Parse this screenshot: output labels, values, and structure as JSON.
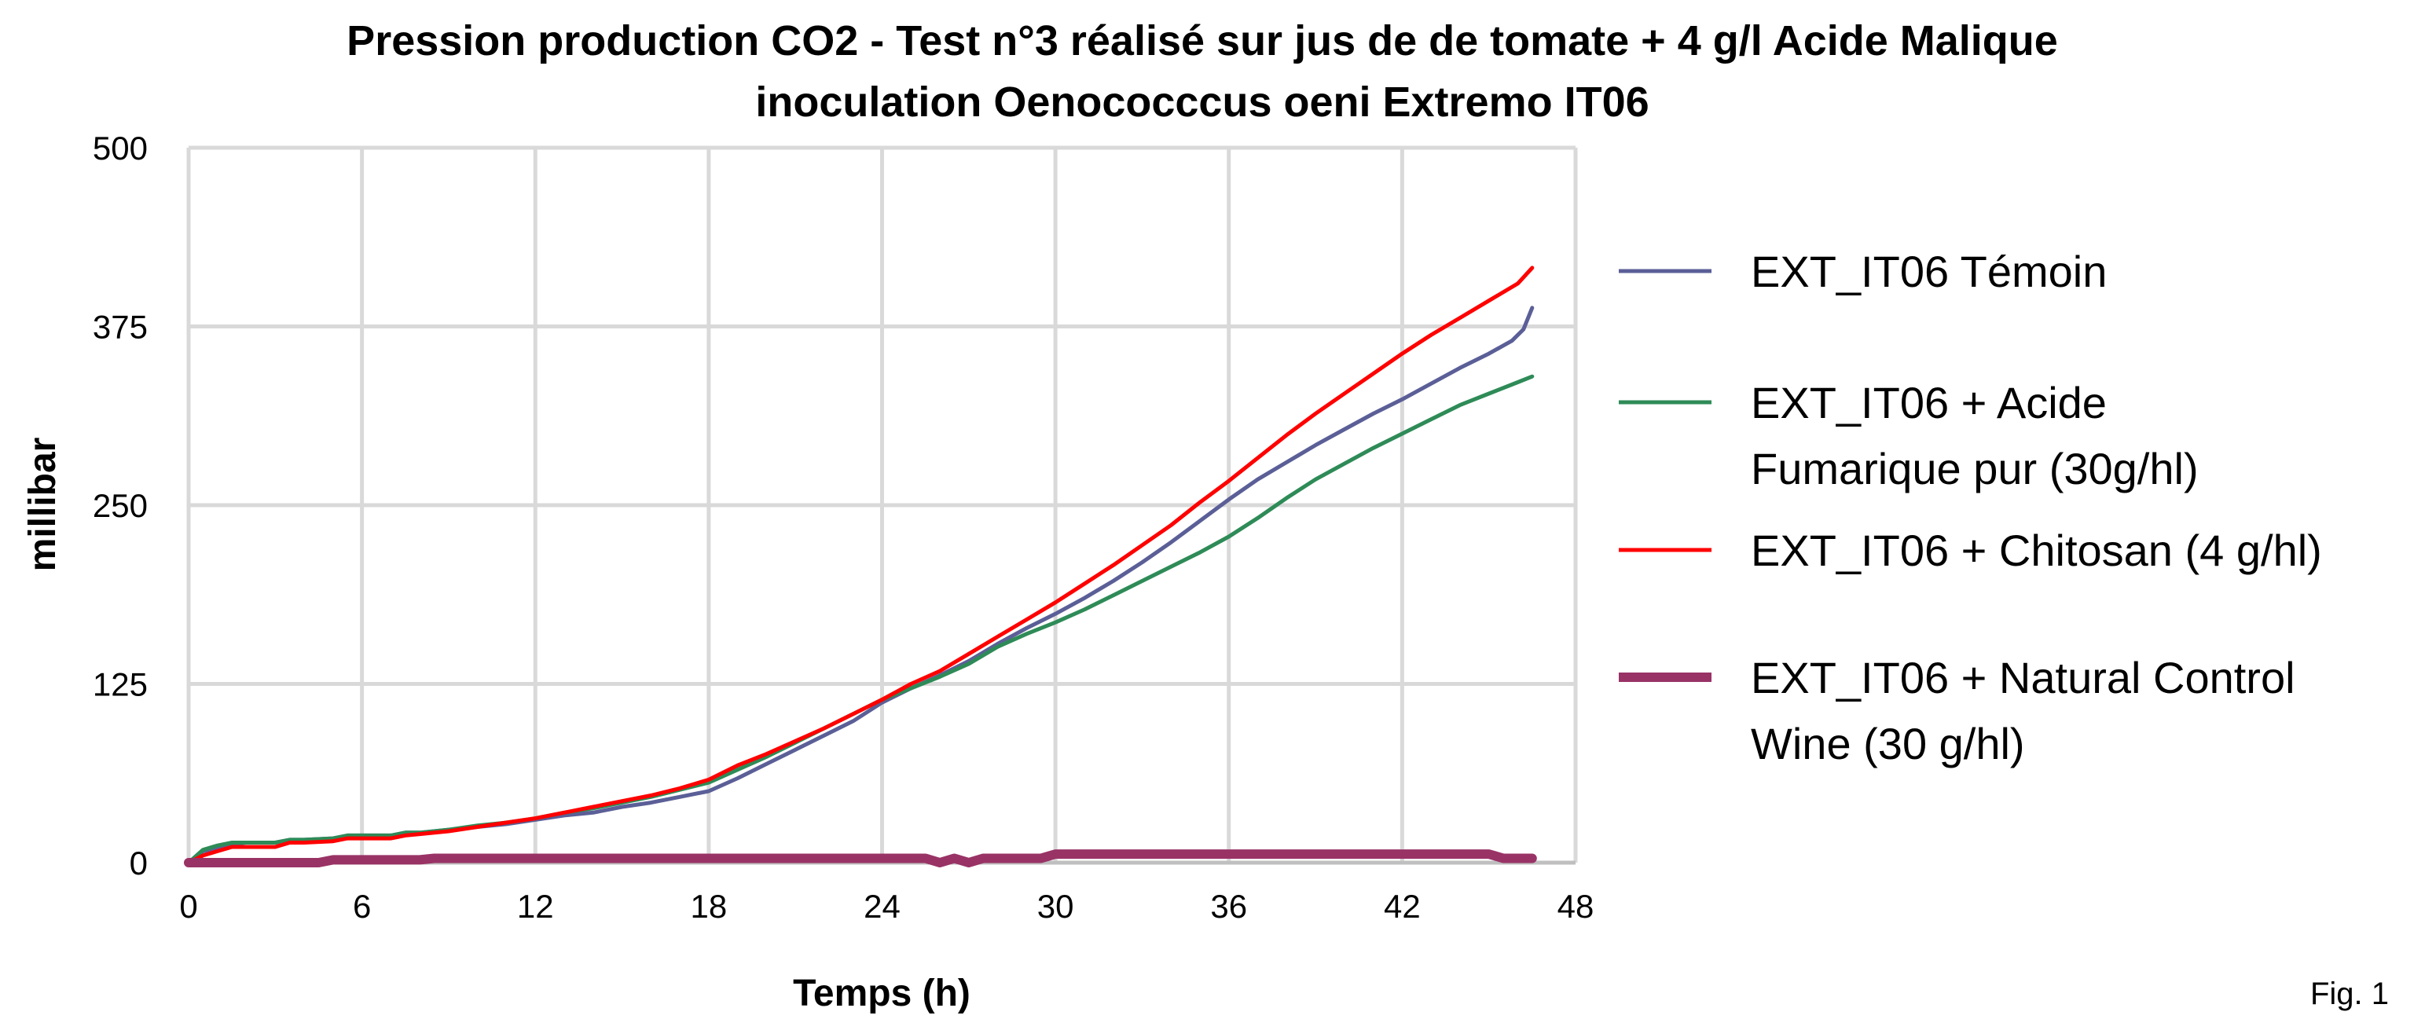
{
  "figure_label": "Fig. 1",
  "chart_data": {
    "type": "line",
    "title_line1": "Pression production CO2 - Test n°3 réalisé sur jus de de tomate + 4 g/l Acide Malique",
    "title_line2": "inoculation Oenococccus oeni Extremo IT06",
    "xlabel": "Temps (h)",
    "ylabel": "millibar",
    "xlim": [
      0,
      48
    ],
    "ylim": [
      0,
      500
    ],
    "xticks": [
      0,
      6,
      12,
      18,
      24,
      30,
      36,
      42,
      48
    ],
    "yticks": [
      0,
      125,
      250,
      375,
      500
    ],
    "grid": true,
    "legend_position": "right",
    "series": [
      {
        "name": "EXT_IT06 Témoin",
        "legend_lines": [
          "EXT_IT06 Témoin"
        ],
        "color": "#5b5f97",
        "width": "normal",
        "points": [
          [
            0,
            0
          ],
          [
            0.5,
            8
          ],
          [
            1,
            10
          ],
          [
            1.5,
            13
          ],
          [
            2,
            14
          ],
          [
            3,
            14
          ],
          [
            3.5,
            16
          ],
          [
            4,
            16
          ],
          [
            5,
            17
          ],
          [
            5.5,
            19
          ],
          [
            6,
            19
          ],
          [
            7,
            19
          ],
          [
            7.5,
            21
          ],
          [
            8,
            21
          ],
          [
            9,
            23
          ],
          [
            10,
            25
          ],
          [
            11,
            27
          ],
          [
            12,
            30
          ],
          [
            13,
            33
          ],
          [
            14,
            35
          ],
          [
            15,
            39
          ],
          [
            16,
            42
          ],
          [
            17,
            46
          ],
          [
            18,
            50
          ],
          [
            19,
            59
          ],
          [
            20,
            69
          ],
          [
            21,
            79
          ],
          [
            22,
            89
          ],
          [
            23,
            99
          ],
          [
            24,
            112
          ],
          [
            25,
            122
          ],
          [
            26,
            131
          ],
          [
            27,
            141
          ],
          [
            28,
            153
          ],
          [
            29,
            164
          ],
          [
            30,
            174
          ],
          [
            31,
            185
          ],
          [
            32,
            197
          ],
          [
            33,
            210
          ],
          [
            34,
            224
          ],
          [
            35,
            239
          ],
          [
            36,
            254
          ],
          [
            37,
            268
          ],
          [
            38,
            280
          ],
          [
            39,
            292
          ],
          [
            40,
            303
          ],
          [
            41,
            314
          ],
          [
            42,
            324
          ],
          [
            43,
            335
          ],
          [
            44,
            346
          ],
          [
            45,
            356
          ],
          [
            45.8,
            365
          ],
          [
            46.2,
            373
          ],
          [
            46.5,
            388
          ]
        ]
      },
      {
        "name": "EXT_IT06 + Acide Fumarique pur (30g/hl)",
        "legend_lines": [
          "EXT_IT06 + Acide",
          "Fumarique pur (30g/hl)"
        ],
        "color": "#2e8b57",
        "width": "normal",
        "points": [
          [
            0,
            0
          ],
          [
            0.5,
            9
          ],
          [
            1,
            12
          ],
          [
            1.5,
            14
          ],
          [
            2,
            14
          ],
          [
            3,
            14
          ],
          [
            3.5,
            16
          ],
          [
            4,
            16
          ],
          [
            5,
            17
          ],
          [
            5.5,
            19
          ],
          [
            6,
            19
          ],
          [
            7,
            19
          ],
          [
            7.5,
            21
          ],
          [
            8,
            21
          ],
          [
            9,
            23
          ],
          [
            10,
            26
          ],
          [
            11,
            28
          ],
          [
            12,
            31
          ],
          [
            13,
            35
          ],
          [
            14,
            38
          ],
          [
            15,
            42
          ],
          [
            16,
            46
          ],
          [
            17,
            51
          ],
          [
            18,
            56
          ],
          [
            19,
            65
          ],
          [
            20,
            74
          ],
          [
            21,
            84
          ],
          [
            22,
            94
          ],
          [
            23,
            104
          ],
          [
            24,
            114
          ],
          [
            25,
            122
          ],
          [
            26,
            130
          ],
          [
            27,
            139
          ],
          [
            28,
            151
          ],
          [
            29,
            160
          ],
          [
            30,
            168
          ],
          [
            31,
            177
          ],
          [
            32,
            187
          ],
          [
            33,
            197
          ],
          [
            34,
            207
          ],
          [
            35,
            217
          ],
          [
            36,
            228
          ],
          [
            37,
            241
          ],
          [
            38,
            255
          ],
          [
            39,
            268
          ],
          [
            40,
            279
          ],
          [
            41,
            290
          ],
          [
            42,
            300
          ],
          [
            43,
            310
          ],
          [
            44,
            320
          ],
          [
            45,
            328
          ],
          [
            46,
            336
          ],
          [
            46.5,
            340
          ]
        ]
      },
      {
        "name": "EXT_IT06 + Chitosan (4 g/hl)",
        "legend_lines": [
          "EXT_IT06 + Chitosan (4 g/hl)"
        ],
        "color": "#ff0000",
        "width": "normal",
        "points": [
          [
            0,
            0
          ],
          [
            0.5,
            5
          ],
          [
            1,
            8
          ],
          [
            1.5,
            11
          ],
          [
            2,
            11
          ],
          [
            3,
            11
          ],
          [
            3.5,
            14
          ],
          [
            4,
            14
          ],
          [
            5,
            15
          ],
          [
            5.5,
            17
          ],
          [
            6,
            17
          ],
          [
            7,
            17
          ],
          [
            7.5,
            19
          ],
          [
            8,
            20
          ],
          [
            9,
            22
          ],
          [
            10,
            25
          ],
          [
            11,
            28
          ],
          [
            12,
            31
          ],
          [
            13,
            35
          ],
          [
            14,
            39
          ],
          [
            15,
            43
          ],
          [
            16,
            47
          ],
          [
            17,
            52
          ],
          [
            18,
            58
          ],
          [
            19,
            68
          ],
          [
            20,
            76
          ],
          [
            21,
            85
          ],
          [
            22,
            94
          ],
          [
            23,
            104
          ],
          [
            24,
            114
          ],
          [
            25,
            125
          ],
          [
            26,
            134
          ],
          [
            27,
            146
          ],
          [
            28,
            158
          ],
          [
            29,
            170
          ],
          [
            30,
            182
          ],
          [
            31,
            195
          ],
          [
            32,
            208
          ],
          [
            33,
            222
          ],
          [
            34,
            236
          ],
          [
            35,
            252
          ],
          [
            36,
            267
          ],
          [
            37,
            283
          ],
          [
            38,
            299
          ],
          [
            39,
            314
          ],
          [
            40,
            328
          ],
          [
            41,
            342
          ],
          [
            42,
            356
          ],
          [
            43,
            369
          ],
          [
            44,
            381
          ],
          [
            45,
            393
          ],
          [
            46,
            405
          ],
          [
            46.5,
            416
          ]
        ]
      },
      {
        "name": "EXT_IT06 + Natural Control Wine (30 g/hl)",
        "legend_lines": [
          "EXT_IT06 + Natural Control",
          "Wine (30 g/hl)"
        ],
        "color": "#993366",
        "width": "thick",
        "points": [
          [
            0,
            0
          ],
          [
            4.5,
            0
          ],
          [
            5,
            2
          ],
          [
            8,
            2
          ],
          [
            8.5,
            3
          ],
          [
            25,
            3
          ],
          [
            25.5,
            3
          ],
          [
            26,
            0
          ],
          [
            26.5,
            3
          ],
          [
            27,
            0
          ],
          [
            27.5,
            3
          ],
          [
            29.5,
            3
          ],
          [
            30,
            6
          ],
          [
            44.5,
            6
          ],
          [
            45,
            6
          ],
          [
            45.5,
            3
          ],
          [
            46.5,
            3
          ]
        ]
      }
    ]
  }
}
